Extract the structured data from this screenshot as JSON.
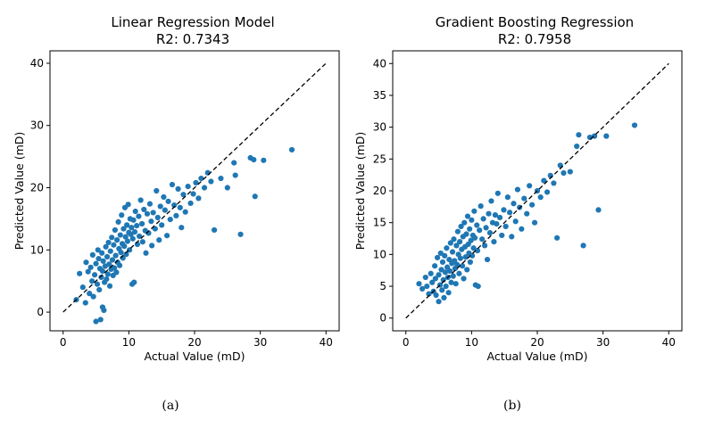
{
  "chart_data": [
    {
      "type": "scatter",
      "title": "Linear Regression Model",
      "subtitle": "R2: 0.7343",
      "xlabel": "Actual Value (mD)",
      "ylabel": "Predicted Value (mD)",
      "xlim": [
        -2,
        42
      ],
      "ylim": [
        -3,
        42
      ],
      "xticks": [
        0,
        10,
        20,
        30,
        40
      ],
      "yticks": [
        0,
        10,
        20,
        30,
        40
      ],
      "caption": "(a)",
      "point_color": "#1f77b4",
      "reference_line": {
        "from": [
          0,
          0
        ],
        "to": [
          40,
          40
        ],
        "style": "dashed",
        "color": "#000000"
      },
      "points": [
        [
          2.0,
          2.0
        ],
        [
          2.5,
          6.2
        ],
        [
          3.0,
          4.0
        ],
        [
          3.4,
          1.5
        ],
        [
          3.5,
          8.0
        ],
        [
          3.8,
          6.5
        ],
        [
          4.0,
          3.0
        ],
        [
          4.2,
          7.2
        ],
        [
          4.4,
          5.0
        ],
        [
          4.5,
          9.2
        ],
        [
          4.6,
          2.5
        ],
        [
          4.8,
          6.0
        ],
        [
          5.0,
          7.8
        ],
        [
          5.0,
          -1.5
        ],
        [
          5.2,
          4.5
        ],
        [
          5.3,
          10.0
        ],
        [
          5.4,
          8.6
        ],
        [
          5.5,
          3.6
        ],
        [
          5.6,
          7.0
        ],
        [
          5.7,
          -1.2
        ],
        [
          5.8,
          5.6
        ],
        [
          5.9,
          9.5
        ],
        [
          6.0,
          0.8
        ],
        [
          6.0,
          6.6
        ],
        [
          6.1,
          8.2
        ],
        [
          6.2,
          0.3
        ],
        [
          6.3,
          4.8
        ],
        [
          6.4,
          7.4
        ],
        [
          6.5,
          10.5
        ],
        [
          6.6,
          5.3
        ],
        [
          6.7,
          8.9
        ],
        [
          6.8,
          6.1
        ],
        [
          6.9,
          11.2
        ],
        [
          7.0,
          7.7
        ],
        [
          7.1,
          4.2
        ],
        [
          7.2,
          9.8
        ],
        [
          7.3,
          6.9
        ],
        [
          7.4,
          12.0
        ],
        [
          7.5,
          8.4
        ],
        [
          7.6,
          5.9
        ],
        [
          7.7,
          10.8
        ],
        [
          7.8,
          7.1
        ],
        [
          7.9,
          13.2
        ],
        [
          8.0,
          9.1
        ],
        [
          8.1,
          6.4
        ],
        [
          8.2,
          11.6
        ],
        [
          8.3,
          8.0
        ],
        [
          8.4,
          14.5
        ],
        [
          8.5,
          10.2
        ],
        [
          8.6,
          7.5
        ],
        [
          8.7,
          12.4
        ],
        [
          8.8,
          9.6
        ],
        [
          8.9,
          15.6
        ],
        [
          9.0,
          11.0
        ],
        [
          9.1,
          8.7
        ],
        [
          9.2,
          13.4
        ],
        [
          9.3,
          10.6
        ],
        [
          9.4,
          16.8
        ],
        [
          9.5,
          12.1
        ],
        [
          9.6,
          9.3
        ],
        [
          9.7,
          14.0
        ],
        [
          9.8,
          11.4
        ],
        [
          9.9,
          17.3
        ],
        [
          10.0,
          12.8
        ],
        [
          10.1,
          10.0
        ],
        [
          10.2,
          15.0
        ],
        [
          10.3,
          12.5
        ],
        [
          10.4,
          13.6
        ],
        [
          10.5,
          4.5
        ],
        [
          10.6,
          11.8
        ],
        [
          10.7,
          14.8
        ],
        [
          10.8,
          4.8
        ],
        [
          10.9,
          12.9
        ],
        [
          11.0,
          16.2
        ],
        [
          11.2,
          13.9
        ],
        [
          11.3,
          10.9
        ],
        [
          11.5,
          15.4
        ],
        [
          11.6,
          12.2
        ],
        [
          11.8,
          18.0
        ],
        [
          12.0,
          14.2
        ],
        [
          12.1,
          11.3
        ],
        [
          12.3,
          16.5
        ],
        [
          12.5,
          13.1
        ],
        [
          12.6,
          9.5
        ],
        [
          12.8,
          15.8
        ],
        [
          13.0,
          12.7
        ],
        [
          13.2,
          17.4
        ],
        [
          13.4,
          14.6
        ],
        [
          13.5,
          10.7
        ],
        [
          13.7,
          16.0
        ],
        [
          14.0,
          13.4
        ],
        [
          14.2,
          19.5
        ],
        [
          14.4,
          15.2
        ],
        [
          14.6,
          11.6
        ],
        [
          14.8,
          17.0
        ],
        [
          15.0,
          14.0
        ],
        [
          15.3,
          18.5
        ],
        [
          15.5,
          16.4
        ],
        [
          15.8,
          12.3
        ],
        [
          16.0,
          17.8
        ],
        [
          16.3,
          14.9
        ],
        [
          16.6,
          20.5
        ],
        [
          16.9,
          17.2
        ],
        [
          17.2,
          15.5
        ],
        [
          17.5,
          19.8
        ],
        [
          17.8,
          16.8
        ],
        [
          18.0,
          13.6
        ],
        [
          18.3,
          18.9
        ],
        [
          18.6,
          16.1
        ],
        [
          19.0,
          20.2
        ],
        [
          19.4,
          17.5
        ],
        [
          19.8,
          19.0
        ],
        [
          20.2,
          20.8
        ],
        [
          20.6,
          18.3
        ],
        [
          21.0,
          21.5
        ],
        [
          21.5,
          20.0
        ],
        [
          22.0,
          22.4
        ],
        [
          22.5,
          21.0
        ],
        [
          23.0,
          13.2
        ],
        [
          24.0,
          21.5
        ],
        [
          25.0,
          20.0
        ],
        [
          26.0,
          24.0
        ],
        [
          26.2,
          22.0
        ],
        [
          27.0,
          12.5
        ],
        [
          28.5,
          24.8
        ],
        [
          29.0,
          24.5
        ],
        [
          29.2,
          18.6
        ],
        [
          30.5,
          24.4
        ],
        [
          34.8,
          26.1
        ]
      ]
    },
    {
      "type": "scatter",
      "title": "Gradient Boosting Regression",
      "subtitle": "R2: 0.7958",
      "xlabel": "Actual Value (mD)",
      "ylabel": "Predicted Value (mD)",
      "xlim": [
        -2,
        42
      ],
      "ylim": [
        -2,
        42
      ],
      "xticks": [
        0,
        10,
        20,
        30,
        40
      ],
      "yticks": [
        0,
        5,
        10,
        15,
        20,
        25,
        30,
        35,
        40
      ],
      "caption": "(b)",
      "point_color": "#1f77b4",
      "reference_line": {
        "from": [
          0,
          0
        ],
        "to": [
          40,
          40
        ],
        "style": "dashed",
        "color": "#000000"
      },
      "points": [
        [
          2.0,
          5.4
        ],
        [
          2.5,
          4.6
        ],
        [
          3.0,
          6.4
        ],
        [
          3.2,
          5.0
        ],
        [
          3.5,
          3.8
        ],
        [
          3.8,
          7.0
        ],
        [
          4.0,
          5.6
        ],
        [
          4.2,
          4.2
        ],
        [
          4.4,
          8.2
        ],
        [
          4.5,
          6.2
        ],
        [
          4.6,
          3.6
        ],
        [
          4.8,
          9.5
        ],
        [
          5.0,
          6.8
        ],
        [
          5.0,
          2.6
        ],
        [
          5.2,
          5.2
        ],
        [
          5.3,
          10.2
        ],
        [
          5.4,
          7.6
        ],
        [
          5.5,
          4.4
        ],
        [
          5.6,
          8.8
        ],
        [
          5.7,
          6.0
        ],
        [
          5.8,
          3.2
        ],
        [
          5.9,
          9.8
        ],
        [
          6.0,
          7.2
        ],
        [
          6.1,
          5.0
        ],
        [
          6.2,
          11.0
        ],
        [
          6.3,
          8.0
        ],
        [
          6.4,
          6.4
        ],
        [
          6.5,
          4.0
        ],
        [
          6.6,
          9.2
        ],
        [
          6.7,
          7.4
        ],
        [
          6.8,
          11.8
        ],
        [
          6.9,
          5.6
        ],
        [
          7.0,
          8.6
        ],
        [
          7.1,
          10.4
        ],
        [
          7.2,
          6.6
        ],
        [
          7.3,
          12.4
        ],
        [
          7.4,
          9.0
        ],
        [
          7.5,
          7.8
        ],
        [
          7.6,
          5.4
        ],
        [
          7.7,
          11.4
        ],
        [
          7.8,
          8.4
        ],
        [
          7.9,
          13.6
        ],
        [
          8.0,
          10.0
        ],
        [
          8.1,
          7.0
        ],
        [
          8.2,
          12.0
        ],
        [
          8.3,
          9.4
        ],
        [
          8.4,
          14.4
        ],
        [
          8.5,
          10.8
        ],
        [
          8.6,
          8.2
        ],
        [
          8.7,
          12.8
        ],
        [
          8.8,
          6.2
        ],
        [
          8.9,
          15.0
        ],
        [
          9.0,
          11.2
        ],
        [
          9.1,
          9.6
        ],
        [
          9.2,
          13.2
        ],
        [
          9.3,
          7.6
        ],
        [
          9.4,
          16.0
        ],
        [
          9.5,
          11.6
        ],
        [
          9.6,
          10.2
        ],
        [
          9.7,
          14.0
        ],
        [
          9.8,
          8.8
        ],
        [
          9.9,
          12.2
        ],
        [
          10.0,
          15.4
        ],
        [
          10.1,
          9.8
        ],
        [
          10.2,
          13.0
        ],
        [
          10.3,
          11.0
        ],
        [
          10.4,
          16.8
        ],
        [
          10.5,
          12.6
        ],
        [
          10.6,
          5.2
        ],
        [
          10.8,
          14.6
        ],
        [
          10.9,
          10.6
        ],
        [
          11.0,
          5.0
        ],
        [
          11.2,
          13.8
        ],
        [
          11.4,
          17.6
        ],
        [
          11.6,
          12.4
        ],
        [
          11.8,
          15.6
        ],
        [
          12.0,
          11.4
        ],
        [
          12.2,
          14.2
        ],
        [
          12.4,
          9.2
        ],
        [
          12.6,
          16.4
        ],
        [
          12.8,
          13.4
        ],
        [
          13.0,
          18.4
        ],
        [
          13.2,
          15.0
        ],
        [
          13.4,
          12.0
        ],
        [
          13.6,
          16.2
        ],
        [
          13.8,
          14.8
        ],
        [
          14.0,
          19.6
        ],
        [
          14.3,
          15.8
        ],
        [
          14.6,
          13.0
        ],
        [
          14.9,
          17.0
        ],
        [
          15.2,
          14.4
        ],
        [
          15.5,
          19.0
        ],
        [
          15.8,
          16.6
        ],
        [
          16.1,
          12.8
        ],
        [
          16.4,
          18.0
        ],
        [
          16.7,
          15.2
        ],
        [
          17.0,
          20.2
        ],
        [
          17.3,
          17.4
        ],
        [
          17.6,
          14.0
        ],
        [
          18.0,
          18.8
        ],
        [
          18.4,
          16.4
        ],
        [
          18.8,
          20.8
        ],
        [
          19.2,
          17.8
        ],
        [
          19.6,
          15.0
        ],
        [
          20.0,
          20.0
        ],
        [
          20.5,
          19.0
        ],
        [
          21.0,
          21.6
        ],
        [
          21.5,
          19.8
        ],
        [
          22.0,
          22.4
        ],
        [
          22.5,
          21.2
        ],
        [
          23.0,
          12.6
        ],
        [
          23.5,
          24.0
        ],
        [
          24.0,
          22.8
        ],
        [
          25.0,
          23.0
        ],
        [
          26.0,
          27.0
        ],
        [
          26.3,
          28.8
        ],
        [
          27.0,
          11.4
        ],
        [
          28.0,
          28.4
        ],
        [
          28.7,
          28.6
        ],
        [
          29.3,
          17.0
        ],
        [
          30.5,
          28.6
        ],
        [
          34.8,
          30.3
        ]
      ]
    }
  ]
}
